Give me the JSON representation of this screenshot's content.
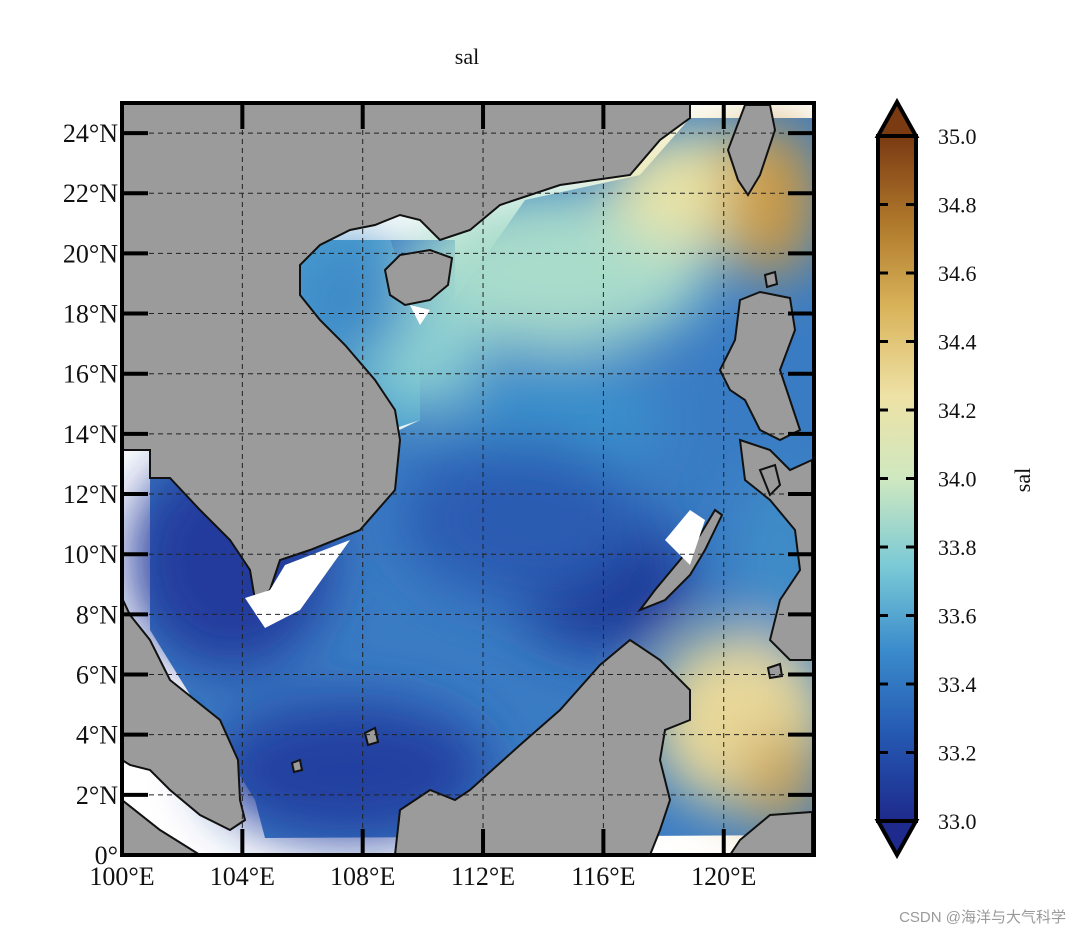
{
  "figure": {
    "title": "sal",
    "colorbar_label": "sal",
    "watermark": "CSDN @海洋与大气科学"
  },
  "map": {
    "lon_range": [
      100,
      123
    ],
    "lat_range": [
      0,
      25
    ],
    "xticks": [
      100,
      104,
      108,
      112,
      116,
      120
    ],
    "yticks": [
      0,
      2,
      4,
      6,
      8,
      10,
      12,
      14,
      16,
      18,
      20,
      22,
      24
    ],
    "xtick_labels": [
      "100°E",
      "104°E",
      "108°E",
      "112°E",
      "116°E",
      "120°E"
    ],
    "ytick_labels": [
      "0°",
      "2°N",
      "4°N",
      "6°N",
      "8°N",
      "10°N",
      "12°N",
      "14°N",
      "16°N",
      "18°N",
      "20°N",
      "22°N",
      "24°N"
    ],
    "grid": "dashed",
    "land_color": "#9b9b9b",
    "coast_color": "#111111"
  },
  "colorbar": {
    "vmin": 33.0,
    "vmax": 35.0,
    "ticks": [
      33.0,
      33.2,
      33.4,
      33.6,
      33.8,
      34.0,
      34.2,
      34.4,
      34.6,
      34.8,
      35.0
    ],
    "tick_labels": [
      "33.0",
      "33.2",
      "33.4",
      "33.6",
      "33.8",
      "34.0",
      "34.2",
      "34.4",
      "34.6",
      "34.8",
      "35.0"
    ],
    "extend": "both",
    "colors": [
      "#1e2a8c",
      "#2456b0",
      "#3b8ccc",
      "#79c9d6",
      "#cfe8c0",
      "#eee2a6",
      "#d9b35a",
      "#b07a2c",
      "#7a3a12"
    ]
  }
}
